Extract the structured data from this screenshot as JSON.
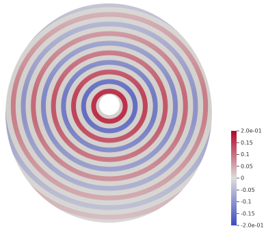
{
  "colorbar": {
    "range": [
      -0.2,
      0.2
    ],
    "colors": [
      "#3b4cc0",
      "#dddddd",
      "#b40426"
    ],
    "ticks": [
      {
        "value": 0.2,
        "label": "2.0e-01"
      },
      0.15,
      0.1,
      0.05,
      0,
      -0.05,
      -0.1,
      -0.15,
      {
        "value": -0.2,
        "label": "-2.0e-01"
      }
    ]
  }
}
